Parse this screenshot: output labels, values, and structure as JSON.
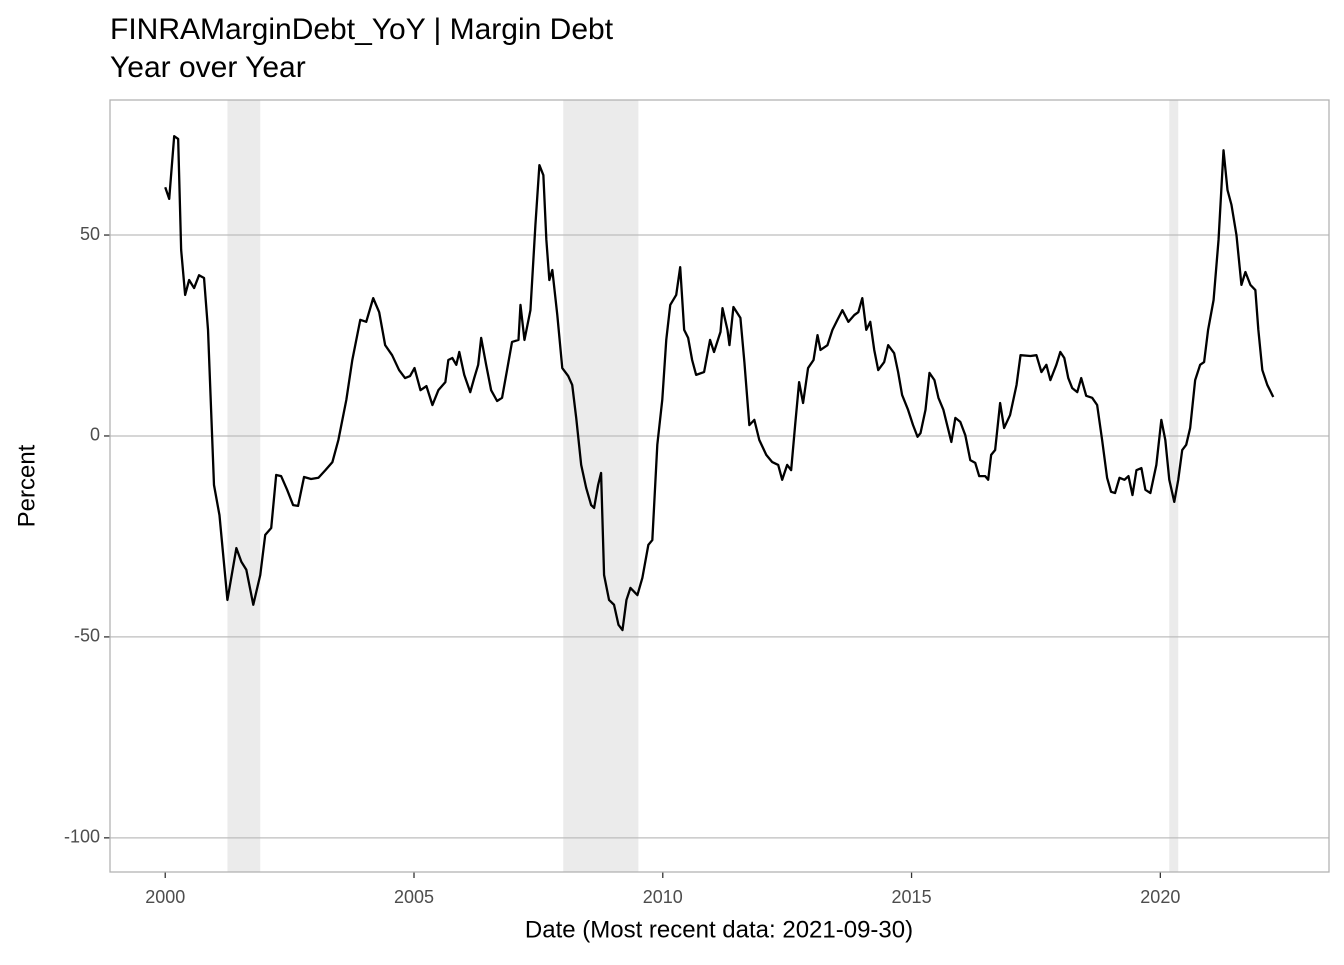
{
  "chart_data": {
    "type": "line",
    "title": "FINRAMarginDebt_YoY | Margin Debt",
    "subtitle": "Year over Year",
    "xlabel": "Date (Most recent data: 2021-09-30)",
    "ylabel": "Percent",
    "color": "#000000",
    "shade_color": "#ebebeb",
    "shaded_periods": [
      [
        2001.25,
        2001.91
      ],
      [
        2008.0,
        2009.51
      ],
      [
        2020.18,
        2020.36
      ]
    ],
    "xlim": [
      1998.89,
      2023.39
    ],
    "ylim": [
      -108.5,
      83.6
    ],
    "xticks": [
      2000,
      2005,
      2010,
      2015,
      2020
    ],
    "yticks": [
      -100,
      -50,
      0,
      50
    ],
    "grid": true,
    "x": [
      2000.0,
      2000.08,
      2000.18,
      2000.26,
      2000.32,
      2000.4,
      2000.48,
      2000.58,
      2000.68,
      2000.78,
      2000.86,
      2000.98,
      2001.09,
      2001.25,
      2001.43,
      2001.53,
      2001.63,
      2001.77,
      2001.91,
      2002.01,
      2002.13,
      2002.23,
      2002.33,
      2002.45,
      2002.57,
      2002.67,
      2002.79,
      2002.93,
      2003.08,
      2003.22,
      2003.36,
      2003.48,
      2003.64,
      2003.76,
      2003.92,
      2004.04,
      2004.18,
      2004.3,
      2004.42,
      2004.56,
      2004.7,
      2004.82,
      2004.92,
      2005.01,
      2005.13,
      2005.25,
      2005.37,
      2005.49,
      2005.63,
      2005.69,
      2005.77,
      2005.85,
      2005.91,
      2006.01,
      2006.13,
      2006.21,
      2006.29,
      2006.35,
      2006.45,
      2006.55,
      2006.67,
      2006.77,
      2006.87,
      2006.97,
      2007.1,
      2007.14,
      2007.22,
      2007.34,
      2007.44,
      2007.52,
      2007.6,
      2007.66,
      2007.72,
      2007.78,
      2007.88,
      2007.98,
      2008.1,
      2008.18,
      2008.26,
      2008.36,
      2008.46,
      2008.56,
      2008.62,
      2008.7,
      2008.76,
      2008.82,
      2008.92,
      2009.02,
      2009.11,
      2009.19,
      2009.27,
      2009.35,
      2009.49,
      2009.59,
      2009.71,
      2009.79,
      2009.89,
      2009.99,
      2010.07,
      2010.15,
      2010.27,
      2010.35,
      2010.43,
      2010.51,
      2010.59,
      2010.67,
      2010.83,
      2010.95,
      2011.03,
      2011.16,
      2011.2,
      2011.3,
      2011.34,
      2011.42,
      2011.56,
      2011.64,
      2011.74,
      2011.84,
      2011.94,
      2012.08,
      2012.2,
      2012.32,
      2012.4,
      2012.5,
      2012.58,
      2012.66,
      2012.74,
      2012.82,
      2012.92,
      2013.03,
      2013.11,
      2013.17,
      2013.31,
      2013.41,
      2013.51,
      2013.61,
      2013.73,
      2013.85,
      2013.93,
      2014.01,
      2014.09,
      2014.17,
      2014.25,
      2014.33,
      2014.45,
      2014.53,
      2014.65,
      2014.73,
      2014.81,
      2014.93,
      2015.03,
      2015.12,
      2015.18,
      2015.28,
      2015.36,
      2015.46,
      2015.54,
      2015.64,
      2015.74,
      2015.8,
      2015.88,
      2015.98,
      2016.08,
      2016.18,
      2016.28,
      2016.36,
      2016.48,
      2016.54,
      2016.6,
      2016.68,
      2016.78,
      2016.86,
      2016.98,
      2017.11,
      2017.19,
      2017.39,
      2017.51,
      2017.61,
      2017.71,
      2017.79,
      2017.91,
      2017.99,
      2018.07,
      2018.15,
      2018.23,
      2018.33,
      2018.41,
      2018.51,
      2018.63,
      2018.73,
      2018.83,
      2018.93,
      2019.01,
      2019.09,
      2019.18,
      2019.28,
      2019.36,
      2019.44,
      2019.52,
      2019.62,
      2019.7,
      2019.8,
      2019.92,
      2020.02,
      2020.1,
      2020.18,
      2020.28,
      2020.36,
      2020.44,
      2020.52,
      2020.6,
      2020.7,
      2020.8,
      2020.88,
      2020.96,
      2021.07,
      2021.17,
      2021.27,
      2021.35,
      2021.43,
      2021.53,
      2021.63,
      2021.71,
      2021.81,
      2021.91,
      2021.97,
      2022.05,
      2022.15,
      2022.27
    ],
    "values": [
      61.9,
      59.0,
      74.6,
      73.9,
      46.3,
      35.1,
      38.8,
      36.8,
      40.0,
      39.3,
      26.4,
      -12.2,
      -19.7,
      -40.8,
      -27.9,
      -31.3,
      -33.3,
      -42.0,
      -34.6,
      -24.6,
      -22.9,
      -9.7,
      -10.0,
      -13.4,
      -17.2,
      -17.4,
      -10.2,
      -10.7,
      -10.4,
      -8.5,
      -6.5,
      -1.0,
      9.0,
      18.9,
      28.9,
      28.4,
      34.3,
      30.8,
      22.6,
      20.1,
      16.4,
      14.4,
      14.9,
      16.9,
      11.4,
      12.4,
      7.7,
      11.4,
      13.4,
      18.9,
      19.4,
      17.7,
      20.9,
      15.2,
      10.9,
      14.4,
      17.7,
      24.4,
      17.7,
      11.4,
      8.7,
      9.5,
      16.4,
      23.4,
      23.9,
      32.6,
      23.9,
      31.3,
      52.5,
      67.4,
      64.9,
      48.8,
      38.8,
      41.3,
      30.1,
      16.9,
      14.9,
      12.7,
      4.5,
      -7.2,
      -12.9,
      -17.2,
      -17.9,
      -12.2,
      -9.2,
      -34.6,
      -40.8,
      -42.0,
      -47.0,
      -48.3,
      -40.8,
      -37.8,
      -39.6,
      -35.3,
      -27.1,
      -25.9,
      -2.2,
      9.0,
      23.9,
      32.6,
      35.1,
      42.0,
      26.4,
      24.4,
      18.9,
      15.2,
      15.9,
      23.9,
      20.9,
      25.9,
      31.8,
      26.4,
      22.6,
      32.1,
      29.4,
      18.4,
      2.7,
      4.0,
      -1.0,
      -4.7,
      -6.5,
      -7.2,
      -10.9,
      -7.2,
      -8.5,
      2.7,
      13.4,
      8.2,
      16.9,
      18.9,
      25.1,
      21.4,
      22.6,
      26.4,
      28.9,
      31.3,
      28.4,
      30.1,
      30.8,
      34.3,
      26.4,
      28.4,
      21.4,
      16.4,
      18.4,
      22.6,
      20.6,
      15.9,
      10.2,
      6.5,
      2.7,
      -0.2,
      0.7,
      6.5,
      15.7,
      13.9,
      9.5,
      6.5,
      1.5,
      -1.5,
      4.5,
      3.5,
      0.2,
      -6.0,
      -6.7,
      -10.0,
      -10.0,
      -10.9,
      -4.7,
      -3.5,
      8.2,
      2.0,
      5.2,
      12.7,
      20.1,
      19.9,
      20.1,
      15.9,
      17.7,
      13.9,
      17.7,
      20.9,
      19.4,
      14.4,
      11.9,
      10.9,
      14.4,
      10.0,
      9.5,
      7.7,
      -1.0,
      -10.4,
      -13.9,
      -14.2,
      -10.4,
      -10.9,
      -10.0,
      -14.7,
      -8.5,
      -8.0,
      -13.4,
      -14.2,
      -7.2,
      4.0,
      -1.0,
      -10.9,
      -16.4,
      -10.9,
      -3.5,
      -2.2,
      2.0,
      13.9,
      17.7,
      18.4,
      26.4,
      33.8,
      48.8,
      71.1,
      61.2,
      57.5,
      50.0,
      37.6,
      40.8,
      37.6,
      36.3,
      26.4,
      16.4,
      12.7,
      9.7
    ]
  }
}
